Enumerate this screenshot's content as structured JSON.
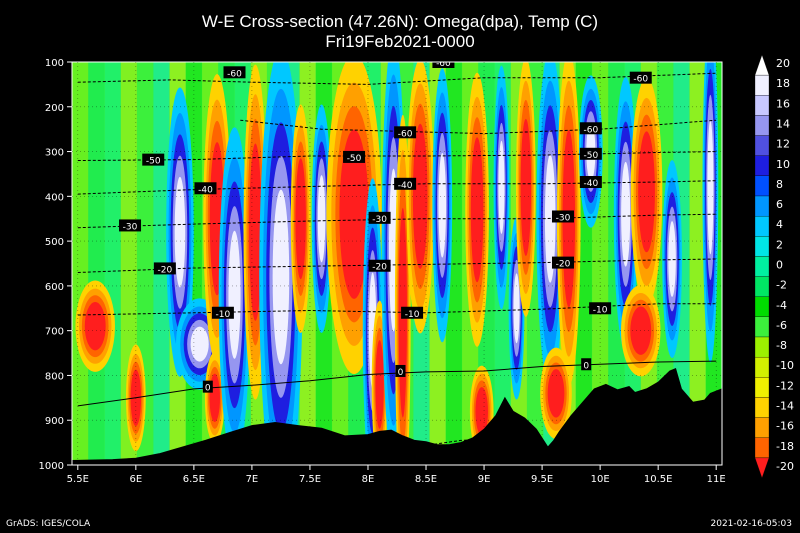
{
  "title": "W-E Cross-section (47.26N): Omega(dpa), Temp (C)",
  "subtitle": "Fri19Feb2021-0000",
  "footer_left": "GrADS: IGES/COLA",
  "footer_right": "2021-02-16-05:03",
  "chart_data": {
    "type": "heatmap",
    "x_ticks": [
      "5.5E",
      "6E",
      "6.5E",
      "7E",
      "7.5E",
      "8E",
      "8.5E",
      "9E",
      "9.5E",
      "10E",
      "10.5E",
      "11E"
    ],
    "x_values": [
      5.5,
      6,
      6.5,
      7,
      7.5,
      8,
      8.5,
      9,
      9.5,
      10,
      10.5,
      11
    ],
    "y_ticks": [
      100,
      200,
      300,
      400,
      500,
      600,
      700,
      800,
      900,
      1000
    ],
    "xlim": [
      5.45,
      11.05
    ],
    "ylim": [
      1000,
      100
    ],
    "colorbar": {
      "labels": [
        20,
        18,
        16,
        14,
        12,
        10,
        8,
        6,
        4,
        2,
        0,
        -2,
        -4,
        -6,
        -8,
        -10,
        -12,
        -14,
        -16,
        -18,
        -20
      ],
      "colors": [
        "#ffffff",
        "#f0f0ff",
        "#c8c8ff",
        "#9696f0",
        "#5050e0",
        "#1e1ee0",
        "#0050ff",
        "#0096ff",
        "#00c8ff",
        "#00e6e6",
        "#00f0a0",
        "#00e664",
        "#00dc00",
        "#3cf03c",
        "#9cf000",
        "#d2f000",
        "#f0f000",
        "#ffd200",
        "#ffa000",
        "#ff6400",
        "#ff1e1e"
      ]
    },
    "omega_features": [
      {
        "kind": "up",
        "x": 6.38,
        "p": 480,
        "dx": 0.07,
        "dp": 190
      },
      {
        "kind": "up",
        "x": 6.55,
        "p": 730,
        "dx": 0.12,
        "dp": 60
      },
      {
        "kind": "down",
        "x": 6.7,
        "p": 450,
        "dx": 0.07,
        "dp": 190
      },
      {
        "kind": "down",
        "x": 6.68,
        "p": 850,
        "dx": 0.05,
        "dp": 60
      },
      {
        "kind": "up",
        "x": 6.85,
        "p": 620,
        "dx": 0.08,
        "dp": 220
      },
      {
        "kind": "down",
        "x": 7.03,
        "p": 480,
        "dx": 0.06,
        "dp": 220
      },
      {
        "kind": "up",
        "x": 7.25,
        "p": 580,
        "dx": 0.11,
        "dp": 300
      },
      {
        "kind": "down",
        "x": 7.42,
        "p": 450,
        "dx": 0.05,
        "dp": 150
      },
      {
        "kind": "up",
        "x": 7.6,
        "p": 450,
        "dx": 0.05,
        "dp": 150
      },
      {
        "kind": "down",
        "x": 7.88,
        "p": 440,
        "dx": 0.14,
        "dp": 210
      },
      {
        "kind": "up",
        "x": 8.04,
        "p": 700,
        "dx": 0.05,
        "dp": 200
      },
      {
        "kind": "down",
        "x": 8.1,
        "p": 820,
        "dx": 0.04,
        "dp": 110
      },
      {
        "kind": "up",
        "x": 8.22,
        "p": 520,
        "dx": 0.06,
        "dp": 280
      },
      {
        "kind": "down",
        "x": 8.3,
        "p": 660,
        "dx": 0.04,
        "dp": 260
      },
      {
        "kind": "down",
        "x": 8.45,
        "p": 400,
        "dx": 0.07,
        "dp": 180
      },
      {
        "kind": "up",
        "x": 8.64,
        "p": 420,
        "dx": 0.05,
        "dp": 180
      },
      {
        "kind": "down",
        "x": 8.94,
        "p": 430,
        "dx": 0.06,
        "dp": 180
      },
      {
        "kind": "down",
        "x": 8.98,
        "p": 880,
        "dx": 0.06,
        "dp": 60
      },
      {
        "kind": "up",
        "x": 9.15,
        "p": 380,
        "dx": 0.04,
        "dp": 160
      },
      {
        "kind": "up",
        "x": 9.28,
        "p": 650,
        "dx": 0.04,
        "dp": 120
      },
      {
        "kind": "down",
        "x": 9.36,
        "p": 380,
        "dx": 0.05,
        "dp": 170
      },
      {
        "kind": "up",
        "x": 9.57,
        "p": 450,
        "dx": 0.07,
        "dp": 220
      },
      {
        "kind": "down",
        "x": 9.73,
        "p": 450,
        "dx": 0.06,
        "dp": 220
      },
      {
        "kind": "down",
        "x": 9.62,
        "p": 840,
        "dx": 0.08,
        "dp": 60
      },
      {
        "kind": "up",
        "x": 9.92,
        "p": 300,
        "dx": 0.06,
        "dp": 100
      },
      {
        "kind": "up",
        "x": 10.22,
        "p": 440,
        "dx": 0.06,
        "dp": 180
      },
      {
        "kind": "down",
        "x": 10.4,
        "p": 390,
        "dx": 0.08,
        "dp": 150
      },
      {
        "kind": "down",
        "x": 10.35,
        "p": 700,
        "dx": 0.1,
        "dp": 60
      },
      {
        "kind": "up",
        "x": 10.62,
        "p": 540,
        "dx": 0.05,
        "dp": 130
      },
      {
        "kind": "up",
        "x": 10.95,
        "p": 380,
        "dx": 0.04,
        "dp": 230
      },
      {
        "kind": "down",
        "x": 6.0,
        "p": 850,
        "dx": 0.05,
        "dp": 70
      },
      {
        "kind": "down",
        "x": 5.65,
        "p": 690,
        "dx": 0.1,
        "dp": 60
      }
    ],
    "temperature_isotherms": [
      {
        "label": "-60",
        "points": [
          [
            5.5,
            145
          ],
          [
            6.3,
            140
          ],
          [
            7,
            145
          ],
          [
            8,
            150
          ],
          [
            9,
            135
          ],
          [
            10,
            135
          ],
          [
            11,
            125
          ]
        ],
        "labels_at": [
          [
            6.85,
            123
          ],
          [
            8.65,
            100
          ],
          [
            10.35,
            135
          ]
        ]
      },
      {
        "label": "-60",
        "points": [
          [
            6.9,
            230
          ],
          [
            7.6,
            250
          ],
          [
            8.3,
            255
          ],
          [
            9,
            260
          ],
          [
            9.5,
            255
          ],
          [
            10,
            250
          ],
          [
            10.5,
            240
          ],
          [
            11,
            230
          ]
        ],
        "labels_at": [
          [
            8.32,
            257
          ],
          [
            9.92,
            248
          ]
        ]
      },
      {
        "label": "-50",
        "points": [
          [
            5.5,
            320
          ],
          [
            6.5,
            318
          ],
          [
            7.5,
            310
          ],
          [
            8.5,
            310
          ],
          [
            9.5,
            308
          ],
          [
            10.5,
            302
          ],
          [
            11,
            300
          ]
        ],
        "labels_at": [
          [
            6.15,
            318
          ],
          [
            7.88,
            312
          ],
          [
            9.92,
            305
          ]
        ]
      },
      {
        "label": "-40",
        "points": [
          [
            5.5,
            395
          ],
          [
            6.5,
            385
          ],
          [
            7.5,
            378
          ],
          [
            8.5,
            372
          ],
          [
            9.5,
            372
          ],
          [
            10.5,
            368
          ],
          [
            11,
            365
          ]
        ],
        "labels_at": [
          [
            6.6,
            382
          ],
          [
            8.32,
            372
          ],
          [
            9.92,
            368
          ]
        ]
      },
      {
        "label": "-30",
        "points": [
          [
            5.5,
            470
          ],
          [
            6.5,
            462
          ],
          [
            7.5,
            455
          ],
          [
            8.5,
            450
          ],
          [
            9.5,
            450
          ],
          [
            10.5,
            442
          ],
          [
            11,
            440
          ]
        ],
        "labels_at": [
          [
            5.95,
            465
          ],
          [
            8.1,
            448
          ],
          [
            9.68,
            445
          ]
        ]
      },
      {
        "label": "-20",
        "points": [
          [
            5.5,
            570
          ],
          [
            6.5,
            560
          ],
          [
            7.5,
            556
          ],
          [
            8.5,
            552
          ],
          [
            9.5,
            548
          ],
          [
            10.5,
            542
          ],
          [
            11,
            540
          ]
        ],
        "labels_at": [
          [
            6.25,
            561
          ],
          [
            8.1,
            555
          ],
          [
            9.68,
            548
          ]
        ]
      },
      {
        "label": "-10",
        "points": [
          [
            5.5,
            665
          ],
          [
            6.5,
            660
          ],
          [
            7.5,
            655
          ],
          [
            8.5,
            660
          ],
          [
            9.5,
            652
          ],
          [
            10.5,
            640
          ],
          [
            11,
            640
          ]
        ],
        "labels_at": [
          [
            6.75,
            660
          ],
          [
            8.38,
            660
          ],
          [
            10.0,
            650
          ]
        ]
      },
      {
        "label": "0",
        "points": [
          [
            5.5,
            868
          ],
          [
            6.0,
            850
          ],
          [
            6.5,
            830
          ],
          [
            7.0,
            822
          ],
          [
            7.5,
            812
          ],
          [
            8.0,
            798
          ],
          [
            8.5,
            792
          ],
          [
            9.0,
            790
          ],
          [
            9.5,
            780
          ],
          [
            10.0,
            775
          ],
          [
            10.5,
            770
          ],
          [
            11,
            768
          ]
        ],
        "labels_at": [
          [
            6.62,
            825
          ],
          [
            8.28,
            790
          ],
          [
            9.88,
            775
          ]
        ]
      },
      {
        "label": "-10",
        "points": [
          [
            8.4,
            960
          ],
          [
            8.8,
            945
          ],
          [
            9.2,
            940
          ]
        ],
        "labels_at": [
          [
            8.42,
            965
          ]
        ]
      }
    ],
    "terrain_surface_pressure": [
      [
        5.45,
        990
      ],
      [
        5.8,
        988
      ],
      [
        6.0,
        985
      ],
      [
        6.2,
        975
      ],
      [
        6.4,
        960
      ],
      [
        6.6,
        945
      ],
      [
        6.8,
        928
      ],
      [
        7.0,
        912
      ],
      [
        7.2,
        905
      ],
      [
        7.4,
        912
      ],
      [
        7.6,
        918
      ],
      [
        7.8,
        935
      ],
      [
        8.0,
        932
      ],
      [
        8.1,
        925
      ],
      [
        8.2,
        922
      ],
      [
        8.3,
        935
      ],
      [
        8.4,
        945
      ],
      [
        8.5,
        948
      ],
      [
        8.6,
        955
      ],
      [
        8.7,
        955
      ],
      [
        8.8,
        950
      ],
      [
        8.9,
        940
      ],
      [
        9.0,
        920
      ],
      [
        9.1,
        890
      ],
      [
        9.18,
        850
      ],
      [
        9.25,
        880
      ],
      [
        9.35,
        895
      ],
      [
        9.45,
        920
      ],
      [
        9.55,
        960
      ],
      [
        9.6,
        945
      ],
      [
        9.65,
        925
      ],
      [
        9.75,
        890
      ],
      [
        9.85,
        860
      ],
      [
        9.95,
        830
      ],
      [
        10.05,
        820
      ],
      [
        10.15,
        832
      ],
      [
        10.25,
        825
      ],
      [
        10.3,
        838
      ],
      [
        10.4,
        830
      ],
      [
        10.5,
        815
      ],
      [
        10.6,
        790
      ],
      [
        10.65,
        785
      ],
      [
        10.7,
        830
      ],
      [
        10.8,
        860
      ],
      [
        10.9,
        855
      ],
      [
        10.95,
        840
      ],
      [
        11.05,
        830
      ]
    ]
  }
}
